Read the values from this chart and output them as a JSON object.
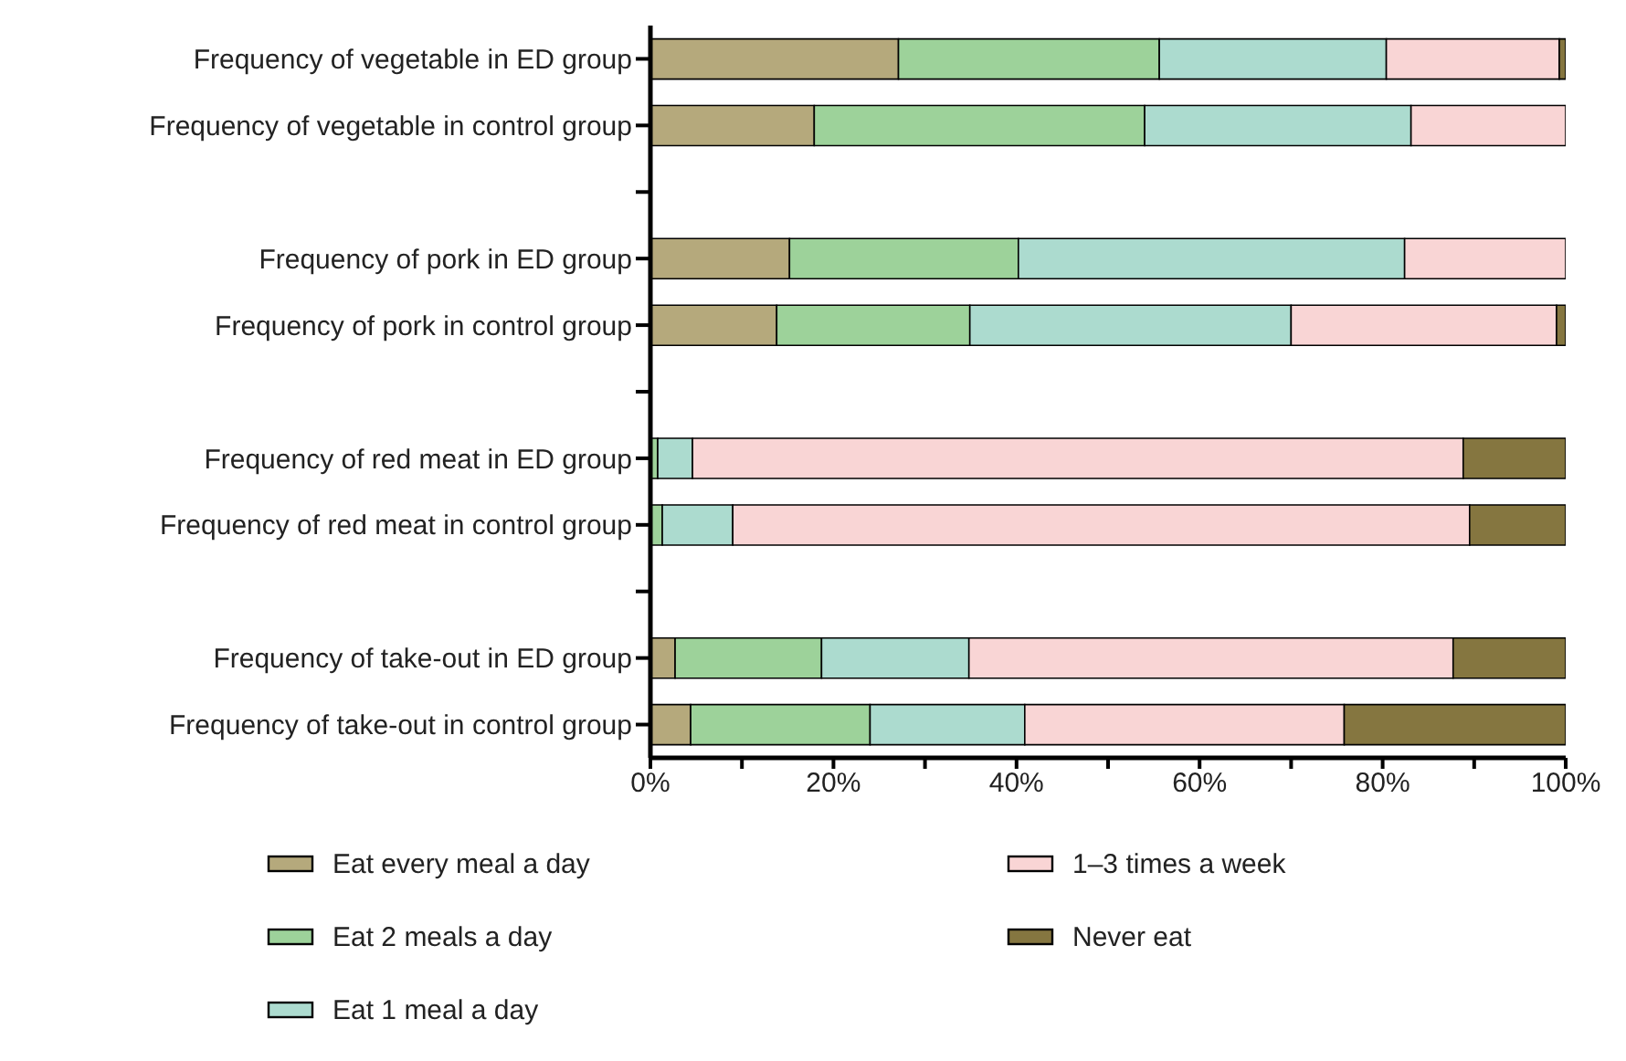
{
  "chart_data": {
    "type": "bar",
    "orientation": "horizontal",
    "stacked": true,
    "categories": [
      "Frequency of vegetable in ED group",
      "Frequency of vegetable in control group",
      null,
      "Frequency of pork in ED group",
      "Frequency of pork in control group",
      null,
      "Frequency of red meat in ED group",
      "Frequency of red meat in control group",
      null,
      "Frequency of take-out in ED group",
      "Frequency of take-out in control group"
    ],
    "series": [
      {
        "name": "Eat every meal a day",
        "color": "#b5a97c",
        "values": [
          27.1,
          17.9,
          null,
          15.2,
          13.8,
          null,
          0,
          0,
          null,
          2.7,
          4.4
        ]
      },
      {
        "name": "Eat 2 meals a day",
        "color": "#9dd29a",
        "values": [
          28.5,
          36.1,
          null,
          25.0,
          21.1,
          null,
          0.8,
          1.3,
          null,
          16.0,
          19.6
        ]
      },
      {
        "name": "Eat 1 meal a day",
        "color": "#acdbcf",
        "values": [
          24.8,
          29.1,
          null,
          42.2,
          35.1,
          null,
          3.8,
          7.7,
          null,
          16.1,
          16.9
        ]
      },
      {
        "name": "1–3 times a week",
        "color": "#f9d5d5",
        "values": [
          18.9,
          16.9,
          null,
          17.6,
          29.0,
          null,
          84.2,
          80.5,
          null,
          52.9,
          34.9
        ]
      },
      {
        "name": "Never eat",
        "color": "#857640",
        "values": [
          0.7,
          0,
          null,
          0,
          1.0,
          null,
          11.2,
          10.5,
          null,
          12.3,
          24.2
        ]
      }
    ],
    "xlim": [
      0,
      100
    ],
    "xticks": [
      {
        "value": 0,
        "label": "0%"
      },
      {
        "value": 10,
        "label": null
      },
      {
        "value": 20,
        "label": "20%"
      },
      {
        "value": 30,
        "label": null
      },
      {
        "value": 40,
        "label": "40%"
      },
      {
        "value": 50,
        "label": null
      },
      {
        "value": 60,
        "label": "60%"
      },
      {
        "value": 70,
        "label": null
      },
      {
        "value": 80,
        "label": "80%"
      },
      {
        "value": 90,
        "label": null
      },
      {
        "value": 100,
        "label": "100%"
      }
    ],
    "grid": false,
    "legend": "bottom"
  }
}
